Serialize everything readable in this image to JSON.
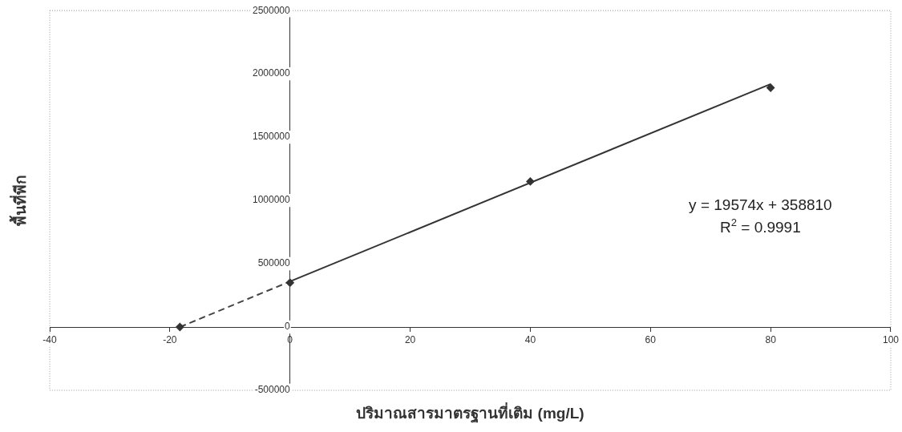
{
  "chart_data": {
    "type": "scatter",
    "xlabel": "ปริมาณสารมาตรฐานที่เติม (mg/L)",
    "ylabel": "พื้นที่พีก",
    "series": [
      {
        "color": "#333333",
        "x": [
          -18.33,
          0,
          40,
          80
        ],
        "values": [
          0,
          350000,
          1150000,
          1890000
        ],
        "marker": "diamond"
      },
      {
        "type": "line",
        "color": "#333333",
        "x": [
          0,
          80
        ],
        "values": [
          360000,
          1920000
        ],
        "line_style": "solid",
        "marker": "none"
      },
      {
        "type": "line",
        "color": "#444444",
        "x": [
          -18.33,
          0
        ],
        "values": [
          0,
          360000
        ],
        "line_style": "dashed",
        "marker": "none"
      }
    ],
    "xlim": [
      -40,
      100
    ],
    "xticks": [
      -40,
      -20,
      0,
      20,
      40,
      60,
      80,
      100
    ],
    "ylim": [
      -500000,
      2500000
    ],
    "yticks": [
      -500000,
      0,
      500000,
      1000000,
      1500000,
      2000000,
      2500000
    ],
    "grid": false,
    "legend": false,
    "annotations": [
      "y = 19574x + 358810",
      "R$^{2}$ = 0.9991"
    ]
  }
}
